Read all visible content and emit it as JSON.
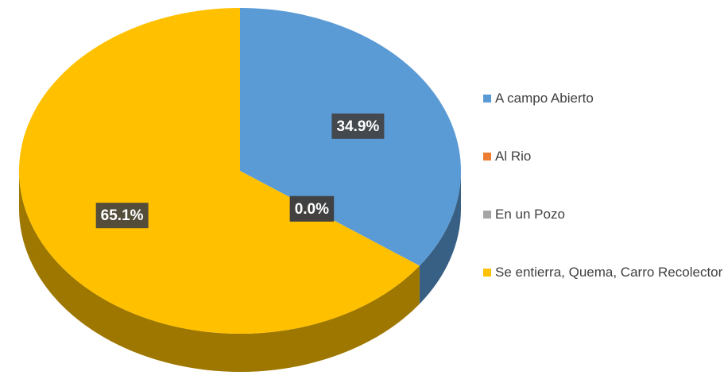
{
  "chart_data": {
    "type": "pie",
    "categories": [
      "A campo Abierto",
      "Al Rio",
      "En un Pozo",
      "Se entierra, Quema, Carro Recolector"
    ],
    "values": [
      34.9,
      0,
      0,
      65.1
    ],
    "value_labels": [
      "34.9%",
      "0.0%",
      "0.0%",
      "65.1%"
    ],
    "colors": [
      "#5b9bd5",
      "#ed7d31",
      "#a5a5a5",
      "#ffc000"
    ],
    "legend": "right"
  }
}
